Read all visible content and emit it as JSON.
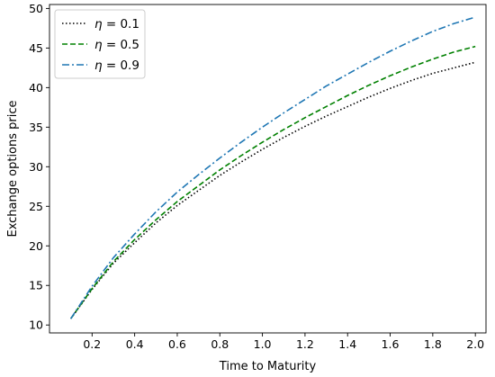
{
  "chart_data": {
    "type": "line",
    "title": "",
    "xlabel": "Time to Maturity",
    "ylabel": "Exchange options price",
    "xlim": [
      0.0,
      2.05
    ],
    "ylim": [
      9.0,
      50.5
    ],
    "xticks": [
      0.2,
      0.4,
      0.6,
      0.8,
      1.0,
      1.2,
      1.4,
      1.6,
      1.8,
      2.0
    ],
    "xtick_labels": [
      "0.2",
      "0.4",
      "0.6",
      "0.8",
      "1.0",
      "1.2",
      "1.4",
      "1.6",
      "1.8",
      "2.0"
    ],
    "yticks": [
      10,
      15,
      20,
      25,
      30,
      35,
      40,
      45,
      50
    ],
    "ytick_labels": [
      "10",
      "15",
      "20",
      "25",
      "30",
      "35",
      "40",
      "45",
      "50"
    ],
    "grid": false,
    "legend_position": "top-left",
    "x": [
      0.1,
      0.2,
      0.3,
      0.4,
      0.5,
      0.6,
      0.7,
      0.8,
      0.9,
      1.0,
      1.1,
      1.2,
      1.3,
      1.4,
      1.5,
      1.6,
      1.7,
      1.8,
      1.9,
      2.0
    ],
    "series": [
      {
        "name": "η = 0.1",
        "legend_math": {
          "symbol": "η",
          "rest": " = 0.1"
        },
        "color": "#000000",
        "style": "dotted",
        "values": [
          10.8,
          14.5,
          17.8,
          20.4,
          22.9,
          25.1,
          27.0,
          28.9,
          30.6,
          32.2,
          33.7,
          35.1,
          36.4,
          37.6,
          38.8,
          39.9,
          40.9,
          41.8,
          42.5,
          43.2
        ]
      },
      {
        "name": "η = 0.5",
        "legend_math": {
          "symbol": "η",
          "rest": " = 0.5"
        },
        "color": "#008000",
        "style": "dashed",
        "values": [
          10.8,
          14.6,
          18.0,
          20.8,
          23.3,
          25.6,
          27.6,
          29.6,
          31.4,
          33.1,
          34.7,
          36.2,
          37.6,
          39.0,
          40.3,
          41.5,
          42.6,
          43.6,
          44.5,
          45.2
        ]
      },
      {
        "name": "η = 0.9",
        "legend_math": {
          "symbol": "η",
          "rest": " = 0.9"
        },
        "color": "#1f77b4",
        "style": "dashdot",
        "values": [
          10.8,
          14.9,
          18.5,
          21.5,
          24.3,
          26.8,
          29.0,
          31.1,
          33.1,
          35.0,
          36.8,
          38.5,
          40.2,
          41.7,
          43.2,
          44.6,
          45.9,
          47.1,
          48.1,
          48.9
        ]
      }
    ]
  }
}
